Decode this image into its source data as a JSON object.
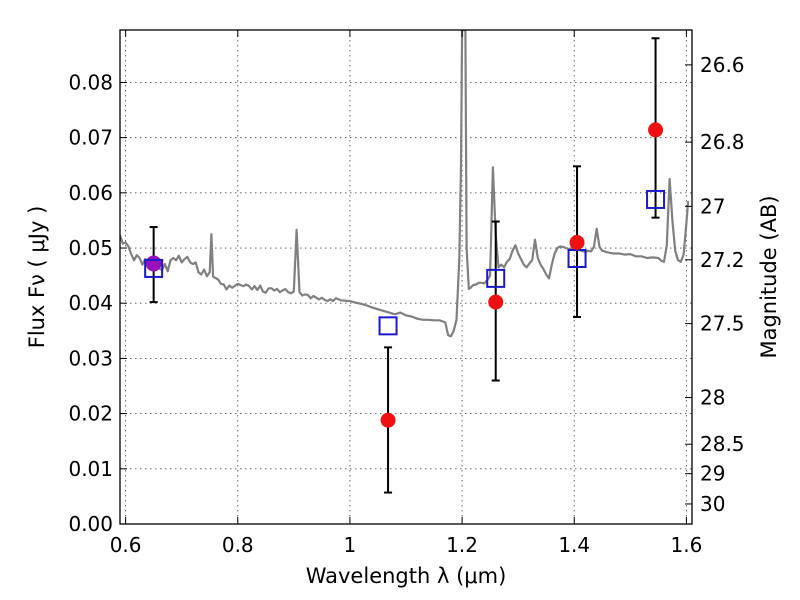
{
  "chart_data": {
    "type": "scatter",
    "title": "",
    "xlabel": "Wavelength  λ (μm)",
    "ylabel": "Flux  Fν  ( μJy )",
    "y2label": "Magnitude (AB)",
    "xlim": [
      0.59,
      1.61
    ],
    "ylim": [
      0.0,
      0.0895
    ],
    "grid": true,
    "x_ticks": [
      {
        "value": 0.6,
        "label": "0.6"
      },
      {
        "value": 0.8,
        "label": "0.8"
      },
      {
        "value": 1.0,
        "label": "1"
      },
      {
        "value": 1.2,
        "label": "1.2"
      },
      {
        "value": 1.4,
        "label": "1.4"
      },
      {
        "value": 1.6,
        "label": "1.6"
      }
    ],
    "y_ticks": [
      {
        "value": 0.0,
        "label": "0.00"
      },
      {
        "value": 0.01,
        "label": "0.01"
      },
      {
        "value": 0.02,
        "label": "0.02"
      },
      {
        "value": 0.03,
        "label": "0.03"
      },
      {
        "value": 0.04,
        "label": "0.04"
      },
      {
        "value": 0.05,
        "label": "0.05"
      },
      {
        "value": 0.06,
        "label": "0.06"
      },
      {
        "value": 0.07,
        "label": "0.07"
      },
      {
        "value": 0.08,
        "label": "0.08"
      }
    ],
    "y2_ticks": [
      {
        "value": 26.6,
        "label": "26.6"
      },
      {
        "value": 26.8,
        "label": "26.8"
      },
      {
        "value": 27.0,
        "label": "27"
      },
      {
        "value": 27.2,
        "label": "27.2"
      },
      {
        "value": 27.5,
        "label": "27.5"
      },
      {
        "value": 28.0,
        "label": "28"
      },
      {
        "value": 28.5,
        "label": "28.5"
      },
      {
        "value": 29.0,
        "label": "29"
      },
      {
        "value": 30.0,
        "label": "30"
      }
    ],
    "colors": {
      "model": "#808080",
      "observed": "#ee1111",
      "synthetic": "#1a1acc",
      "optical": "#9911bb",
      "errorbar": "#000000"
    },
    "model_spectrum": [
      [
        0.59,
        0.0523
      ],
      [
        0.595,
        0.0508
      ],
      [
        0.6,
        0.051
      ],
      [
        0.605,
        0.0503
      ],
      [
        0.61,
        0.0489
      ],
      [
        0.615,
        0.0478
      ],
      [
        0.62,
        0.0487
      ],
      [
        0.625,
        0.0482
      ],
      [
        0.63,
        0.047
      ],
      [
        0.635,
        0.048
      ],
      [
        0.64,
        0.0468
      ],
      [
        0.645,
        0.0475
      ],
      [
        0.65,
        0.0472
      ],
      [
        0.655,
        0.0467
      ],
      [
        0.66,
        0.0463
      ],
      [
        0.665,
        0.046
      ],
      [
        0.67,
        0.0471
      ],
      [
        0.675,
        0.0458
      ],
      [
        0.68,
        0.0478
      ],
      [
        0.685,
        0.0482
      ],
      [
        0.69,
        0.0478
      ],
      [
        0.695,
        0.0486
      ],
      [
        0.7,
        0.0474
      ],
      [
        0.705,
        0.048
      ],
      [
        0.71,
        0.0484
      ],
      [
        0.715,
        0.0474
      ],
      [
        0.72,
        0.0471
      ],
      [
        0.725,
        0.0474
      ],
      [
        0.73,
        0.0456
      ],
      [
        0.735,
        0.0452
      ],
      [
        0.74,
        0.0461
      ],
      [
        0.745,
        0.0449
      ],
      [
        0.75,
        0.0456
      ],
      [
        0.753,
        0.0525
      ],
      [
        0.756,
        0.0448
      ],
      [
        0.76,
        0.0446
      ],
      [
        0.765,
        0.0443
      ],
      [
        0.77,
        0.0435
      ],
      [
        0.775,
        0.0434
      ],
      [
        0.78,
        0.0425
      ],
      [
        0.785,
        0.0432
      ],
      [
        0.79,
        0.0428
      ],
      [
        0.795,
        0.0432
      ],
      [
        0.8,
        0.0435
      ],
      [
        0.805,
        0.0433
      ],
      [
        0.81,
        0.0431
      ],
      [
        0.815,
        0.0434
      ],
      [
        0.82,
        0.0431
      ],
      [
        0.825,
        0.0425
      ],
      [
        0.83,
        0.0431
      ],
      [
        0.835,
        0.0424
      ],
      [
        0.84,
        0.0432
      ],
      [
        0.845,
        0.0421
      ],
      [
        0.85,
        0.0419
      ],
      [
        0.855,
        0.0427
      ],
      [
        0.86,
        0.0427
      ],
      [
        0.865,
        0.0423
      ],
      [
        0.87,
        0.0426
      ],
      [
        0.875,
        0.042
      ],
      [
        0.88,
        0.0423
      ],
      [
        0.885,
        0.0426
      ],
      [
        0.89,
        0.042
      ],
      [
        0.895,
        0.0418
      ],
      [
        0.9,
        0.0421
      ],
      [
        0.905,
        0.0533
      ],
      [
        0.91,
        0.042
      ],
      [
        0.915,
        0.0414
      ],
      [
        0.92,
        0.0416
      ],
      [
        0.925,
        0.0415
      ],
      [
        0.93,
        0.0409
      ],
      [
        0.935,
        0.0413
      ],
      [
        0.94,
        0.041
      ],
      [
        0.945,
        0.0407
      ],
      [
        0.95,
        0.041
      ],
      [
        0.955,
        0.0406
      ],
      [
        0.96,
        0.0404
      ],
      [
        0.965,
        0.0407
      ],
      [
        0.97,
        0.0404
      ],
      [
        0.975,
        0.0409
      ],
      [
        0.98,
        0.0407
      ],
      [
        0.985,
        0.0405
      ],
      [
        0.99,
        0.0405
      ],
      [
        0.995,
        0.0404
      ],
      [
        1.0,
        0.0404
      ],
      [
        1.01,
        0.0401
      ],
      [
        1.02,
        0.0399
      ],
      [
        1.03,
        0.0396
      ],
      [
        1.04,
        0.0392
      ],
      [
        1.05,
        0.0389
      ],
      [
        1.06,
        0.0386
      ],
      [
        1.07,
        0.0383
      ],
      [
        1.08,
        0.038
      ],
      [
        1.09,
        0.0383
      ],
      [
        1.1,
        0.0378
      ],
      [
        1.11,
        0.0376
      ],
      [
        1.12,
        0.0372
      ],
      [
        1.13,
        0.037
      ],
      [
        1.14,
        0.037
      ],
      [
        1.15,
        0.0369
      ],
      [
        1.16,
        0.0369
      ],
      [
        1.165,
        0.0367
      ],
      [
        1.17,
        0.0365
      ],
      [
        1.175,
        0.0342
      ],
      [
        1.18,
        0.034
      ],
      [
        1.185,
        0.035
      ],
      [
        1.19,
        0.037
      ],
      [
        1.195,
        0.048
      ],
      [
        1.198,
        0.065
      ],
      [
        1.2,
        0.0895
      ],
      [
        1.206,
        0.0895
      ],
      [
        1.208,
        0.05
      ],
      [
        1.212,
        0.0426
      ],
      [
        1.215,
        0.0428
      ],
      [
        1.22,
        0.0433
      ],
      [
        1.225,
        0.0434
      ],
      [
        1.23,
        0.0437
      ],
      [
        1.235,
        0.0437
      ],
      [
        1.24,
        0.0436
      ],
      [
        1.245,
        0.0442
      ],
      [
        1.25,
        0.045
      ],
      [
        1.255,
        0.0646
      ],
      [
        1.26,
        0.0525
      ],
      [
        1.265,
        0.0465
      ],
      [
        1.27,
        0.047
      ],
      [
        1.275,
        0.0465
      ],
      [
        1.28,
        0.0475
      ],
      [
        1.285,
        0.048
      ],
      [
        1.29,
        0.0495
      ],
      [
        1.295,
        0.0505
      ],
      [
        1.3,
        0.049
      ],
      [
        1.305,
        0.048
      ],
      [
        1.31,
        0.047
      ],
      [
        1.315,
        0.0465
      ],
      [
        1.32,
        0.0472
      ],
      [
        1.325,
        0.0478
      ],
      [
        1.33,
        0.0515
      ],
      [
        1.335,
        0.0482
      ],
      [
        1.34,
        0.047
      ],
      [
        1.345,
        0.0462
      ],
      [
        1.35,
        0.0452
      ],
      [
        1.355,
        0.0445
      ],
      [
        1.36,
        0.047
      ],
      [
        1.365,
        0.049
      ],
      [
        1.37,
        0.05
      ],
      [
        1.375,
        0.0503
      ],
      [
        1.38,
        0.0502
      ],
      [
        1.385,
        0.05
      ],
      [
        1.39,
        0.0498
      ],
      [
        1.395,
        0.05
      ],
      [
        1.4,
        0.0497
      ],
      [
        1.41,
        0.0496
      ],
      [
        1.42,
        0.0493
      ],
      [
        1.425,
        0.0495
      ],
      [
        1.43,
        0.0494
      ],
      [
        1.435,
        0.0502
      ],
      [
        1.44,
        0.0535
      ],
      [
        1.445,
        0.0502
      ],
      [
        1.45,
        0.0495
      ],
      [
        1.46,
        0.0492
      ],
      [
        1.47,
        0.049
      ],
      [
        1.48,
        0.049
      ],
      [
        1.49,
        0.0488
      ],
      [
        1.5,
        0.0489
      ],
      [
        1.51,
        0.0485
      ],
      [
        1.52,
        0.0485
      ],
      [
        1.53,
        0.0482
      ],
      [
        1.54,
        0.0483
      ],
      [
        1.55,
        0.0482
      ],
      [
        1.555,
        0.0477
      ],
      [
        1.56,
        0.0475
      ],
      [
        1.565,
        0.0505
      ],
      [
        1.57,
        0.0625
      ],
      [
        1.575,
        0.055
      ],
      [
        1.58,
        0.0495
      ],
      [
        1.585,
        0.0478
      ],
      [
        1.59,
        0.0475
      ],
      [
        1.595,
        0.0488
      ],
      [
        1.6,
        0.0545
      ],
      [
        1.603,
        0.0585
      ]
    ],
    "observed": [
      {
        "x": 1.068,
        "y": 0.0188,
        "ylo": 0.0057,
        "yhi": 0.032
      },
      {
        "x": 1.26,
        "y": 0.0402,
        "ylo": 0.026,
        "yhi": 0.0548
      },
      {
        "x": 1.405,
        "y": 0.051,
        "ylo": 0.0375,
        "yhi": 0.0648
      },
      {
        "x": 1.545,
        "y": 0.0714,
        "ylo": 0.0555,
        "yhi": 0.088
      }
    ],
    "optical": [
      {
        "x": 0.65,
        "y": 0.0472,
        "ylo": 0.0402,
        "yhi": 0.0538
      }
    ],
    "synthetic": [
      {
        "x": 0.65,
        "y": 0.0463
      },
      {
        "x": 1.068,
        "y": 0.0359
      },
      {
        "x": 1.26,
        "y": 0.0445
      },
      {
        "x": 1.405,
        "y": 0.0481
      },
      {
        "x": 1.545,
        "y": 0.0588
      }
    ]
  }
}
